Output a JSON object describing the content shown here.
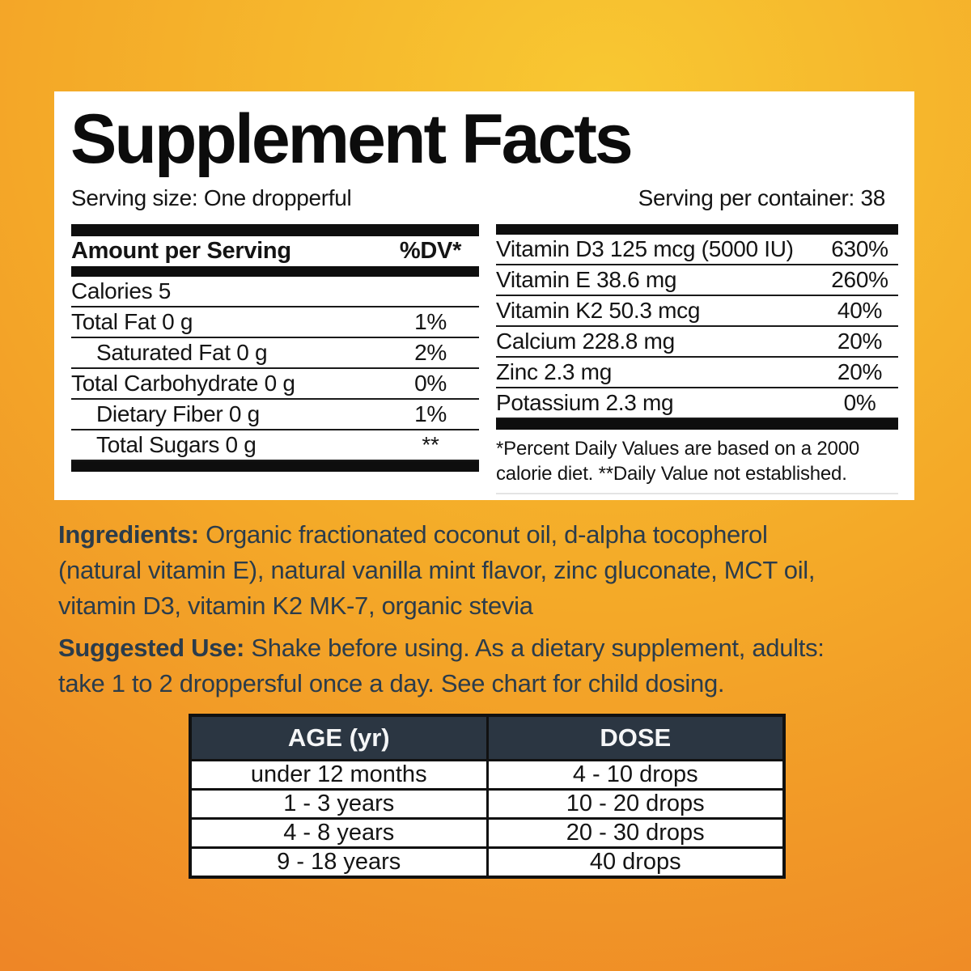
{
  "panel": {
    "title": "Supplement Facts",
    "serving_size": "Serving size: One dropperful",
    "servings_per_container": "Serving per container: 38",
    "left_table": {
      "header": {
        "label": "Amount per Serving",
        "dv": "%DV*"
      },
      "rows": [
        {
          "label": "Calories 5",
          "dv": ""
        },
        {
          "label": "Total Fat 0 g",
          "dv": "1%"
        },
        {
          "label": "Saturated Fat 0 g",
          "dv": "2%"
        },
        {
          "label": "Total Carbohydrate 0 g",
          "dv": "0%"
        },
        {
          "label": "Dietary Fiber 0 g",
          "dv": "1%"
        },
        {
          "label": "Total Sugars 0 g",
          "dv": "**"
        }
      ]
    },
    "right_table": {
      "rows": [
        {
          "label": "Vitamin D3 125 mcg (5000 IU)",
          "dv": "630%"
        },
        {
          "label": "Vitamin E 38.6 mg",
          "dv": "260%"
        },
        {
          "label": "Vitamin K2 50.3 mcg",
          "dv": "40%"
        },
        {
          "label": "Calcium 228.8 mg",
          "dv": "20%"
        },
        {
          "label": "Zinc 2.3 mg",
          "dv": "20%"
        },
        {
          "label": "Potassium 2.3 mg",
          "dv": "0%"
        }
      ],
      "footnote_lines": [
        "*Percent Daily Values are based on a 2000",
        "calorie diet. **Daily Value not established."
      ]
    }
  },
  "ingredients": {
    "label": "Ingredients:",
    "lines": [
      "Organic fractionated coconut oil, d-alpha tocopherol",
      "(natural vitamin E), natural vanilla mint flavor, zinc gluconate, MCT oil,",
      "vitamin D3, vitamin K2 MK-7, organic stevia"
    ]
  },
  "suggested_use": {
    "label": "Suggested Use:",
    "lines": [
      "Shake before using. As a dietary supplement, adults:",
      "take 1 to 2 droppersful once a day. See chart for child dosing."
    ]
  },
  "dose_table": {
    "headers": [
      "AGE (yr)",
      "DOSE"
    ],
    "rows": [
      [
        "under 12 months",
        "4 - 10 drops"
      ],
      [
        "1 - 3 years",
        "10 - 20 drops"
      ],
      [
        "4 - 8 years",
        "20 - 30 drops"
      ],
      [
        "9 - 18 years",
        "40 drops"
      ]
    ]
  },
  "colors": {
    "background_top": "#f8c832",
    "background_bottom": "#ee8626",
    "panel_background": "#ffffff",
    "facts_text": "#141414",
    "paragraph_text": "#2b3c4b",
    "dose_header_background": "#2b3642",
    "dose_header_text": "#f5f6f7"
  }
}
